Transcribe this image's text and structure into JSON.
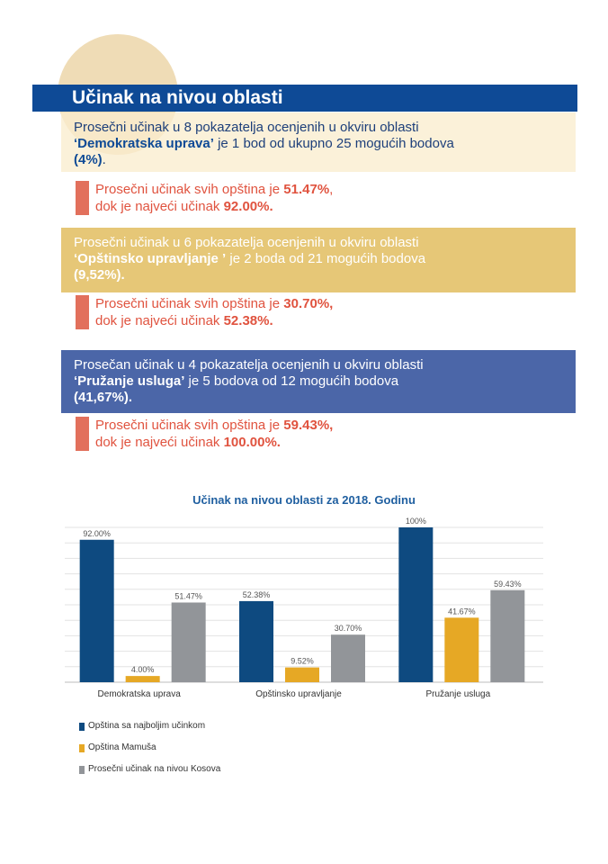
{
  "header": {
    "title": "Učinak na nivou oblasti"
  },
  "sections": [
    {
      "intro_a": "Prosečni učinak u 8 pokazatelja ocenjenih u okviru oblasti",
      "area": "‘Demokratska uprava’",
      "intro_b": " je 1 bod od ukupno 25 mogućih bodova",
      "percent": "(4%)",
      "percent_suffix": ".",
      "stat_a": "Prosečni učinak svih opština je ",
      "stat_avg": "51.47%",
      "stat_avg_suffix": ",",
      "stat_b": "dok je najveći učinak ",
      "stat_max": "92.00%."
    },
    {
      "intro_a": "Prosečni učinak u 6 pokazatelja ocenjenih u okviru oblasti",
      "area": "‘Opštinsko upravljanje ’",
      "intro_b": " je 2 boda od 21 mogućih bodova",
      "percent": "(9,52%).",
      "percent_suffix": "",
      "stat_a": "Prosečni učinak svih opština je ",
      "stat_avg": "30.70%,",
      "stat_avg_suffix": "",
      "stat_b": "dok je najveći učinak ",
      "stat_max": "52.38%."
    },
    {
      "intro_a": "Prosečan učinak u 4 pokazatelja ocenjenih u okviru oblasti",
      "area": "‘Pružanje usluga’",
      "intro_b": " je 5 bodova od 12 mogućih bodova",
      "percent": "(41,67%).",
      "percent_suffix": "",
      "stat_a": "Prosečni učinak svih opština je ",
      "stat_avg": "59.43%,",
      "stat_avg_suffix": "",
      "stat_b": "dok je najveći učinak ",
      "stat_max": "100.00%."
    }
  ],
  "chart_data": {
    "type": "bar",
    "title": "Učinak na nivou oblasti za 2018. Godinu",
    "categories": [
      "Demokratska uprava",
      "Opštinsko upravljanje",
      "Pružanje usluga"
    ],
    "series": [
      {
        "name": "Opština sa najboljim učinkom",
        "color": "#0e4a80",
        "values": [
          92.0,
          52.38,
          100
        ],
        "labels": [
          "92.00%",
          "52.38%",
          "100%"
        ]
      },
      {
        "name": "Opština Mamuša",
        "color": "#e6a825",
        "values": [
          4.0,
          9.52,
          41.67
        ],
        "labels": [
          "4.00%",
          "9.52%",
          "41.67%"
        ]
      },
      {
        "name": "Prosečni učinak na nivou Kosova",
        "color": "#929599",
        "values": [
          51.47,
          30.7,
          59.43
        ],
        "labels": [
          "51.47%",
          "30.70%",
          "59.43%"
        ]
      }
    ],
    "ylim": [
      0,
      100
    ],
    "grid": true,
    "legend_position": "bottom-left"
  },
  "colors": {
    "banner": "#0e4a96",
    "accent_red": "#e2705c",
    "gold": "#e6c777",
    "blue_box": "#4b66a8"
  }
}
